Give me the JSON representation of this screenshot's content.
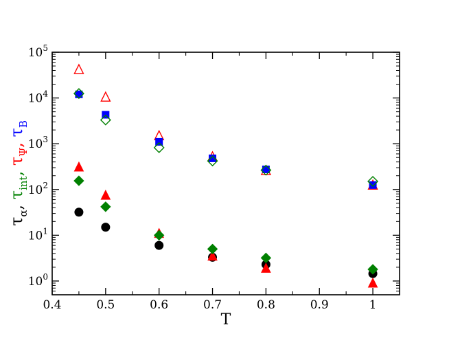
{
  "chart_data": {
    "type": "scatter",
    "xlabel": "T",
    "ylabel_parts": [
      {
        "sym": "τ",
        "sub": "α",
        "sep": ", ",
        "color": "#000000"
      },
      {
        "sym": "τ",
        "sub": "int",
        "sep": ", ",
        "color": "#008000"
      },
      {
        "sym": "τ",
        "sub": "Ψ",
        "sep": ", ",
        "color": "#ff0000"
      },
      {
        "sym": "τ",
        "sub": "B",
        "sep": "",
        "color": "#0000ff"
      }
    ],
    "xlim": [
      0.4,
      1.05
    ],
    "ylim": [
      0.5,
      100000
    ],
    "yscale": "log",
    "x_ticks": [
      {
        "v": 0.4,
        "label": "0.4"
      },
      {
        "v": 0.5,
        "label": "0.5"
      },
      {
        "v": 0.6,
        "label": "0.6"
      },
      {
        "v": 0.7,
        "label": "0.7"
      },
      {
        "v": 0.8,
        "label": "0.8"
      },
      {
        "v": 0.9,
        "label": "0.9"
      },
      {
        "v": 1.0,
        "label": "1"
      }
    ],
    "y_ticks": [
      {
        "v": 1,
        "base": "10",
        "exp": "0"
      },
      {
        "v": 10,
        "base": "10",
        "exp": "1"
      },
      {
        "v": 100,
        "base": "10",
        "exp": "2"
      },
      {
        "v": 1000,
        "base": "10",
        "exp": "3"
      },
      {
        "v": 10000,
        "base": "10",
        "exp": "4"
      },
      {
        "v": 100000,
        "base": "10",
        "exp": "5"
      }
    ],
    "series": [
      {
        "marker": "circle",
        "filled": true,
        "color": "#000000",
        "x": [
          0.45,
          0.5,
          0.6,
          0.7,
          0.8,
          1.0
        ],
        "y": [
          32,
          15,
          6,
          3.3,
          2.3,
          1.45
        ]
      },
      {
        "marker": "triangle",
        "filled": true,
        "color": "#ff0000",
        "x": [
          0.45,
          0.5,
          0.6,
          0.7,
          0.8,
          1.0
        ],
        "y": [
          310,
          75,
          11,
          3.5,
          1.9,
          0.9
        ]
      },
      {
        "marker": "diamond",
        "filled": true,
        "color": "#008000",
        "x": [
          0.45,
          0.5,
          0.6,
          0.7,
          0.8,
          1.0
        ],
        "y": [
          155,
          42,
          10,
          5,
          3.2,
          1.8
        ]
      },
      {
        "marker": "triangle",
        "filled": false,
        "color": "#ff0000",
        "x": [
          0.45,
          0.5,
          0.6,
          0.7,
          0.8,
          1.0
        ],
        "y": [
          42000,
          10500,
          1500,
          520,
          260,
          125
        ]
      },
      {
        "marker": "square",
        "filled": true,
        "color": "#0000ff",
        "x": [
          0.45,
          0.5,
          0.6,
          0.7,
          0.8,
          1.0
        ],
        "y": [
          12000,
          4300,
          1100,
          480,
          275,
          125
        ]
      },
      {
        "marker": "diamond",
        "filled": false,
        "color": "#008000",
        "x": [
          0.45,
          0.5,
          0.6,
          0.7,
          0.8,
          1.0
        ],
        "y": [
          12500,
          3300,
          820,
          420,
          265,
          150
        ]
      }
    ]
  }
}
